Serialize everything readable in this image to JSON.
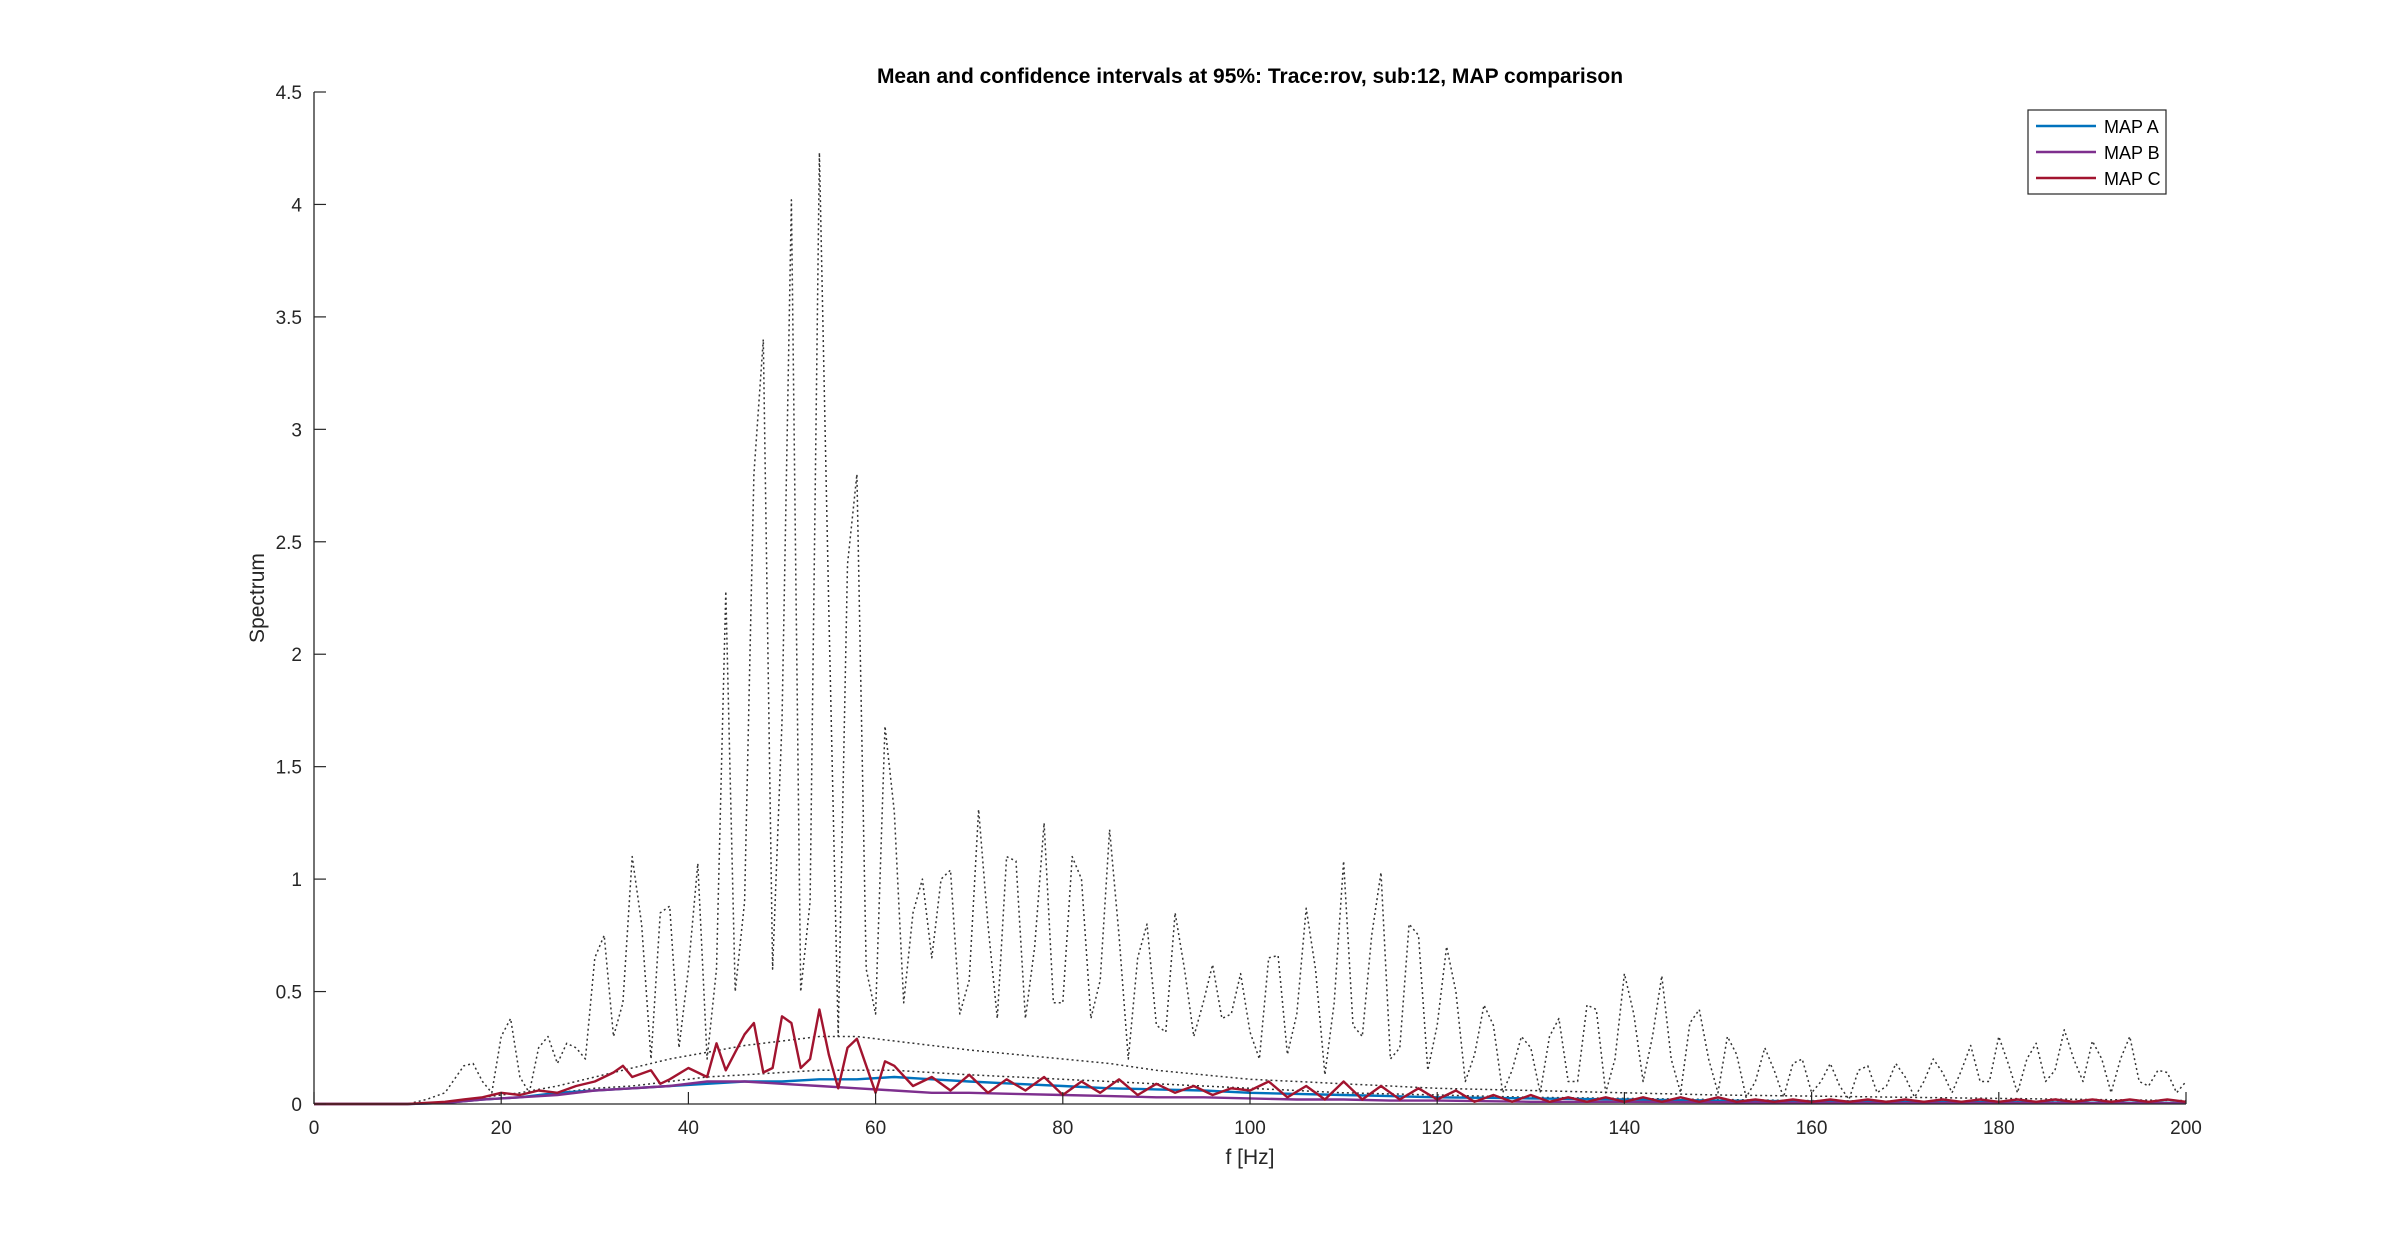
{
  "chart_data": {
    "type": "line",
    "title": "Mean and confidence intervals at 95%: Trace:rov, sub:12, MAP comparison",
    "xlabel": "f [Hz]",
    "ylabel": "Spectrum",
    "xlim": [
      0,
      200
    ],
    "ylim": [
      0,
      4.5
    ],
    "xticks": [
      0,
      20,
      40,
      60,
      80,
      100,
      120,
      140,
      160,
      180,
      200
    ],
    "yticks": [
      0,
      0.5,
      1,
      1.5,
      2,
      2.5,
      3,
      3.5,
      4,
      4.5
    ],
    "xtick_labels": [
      "0",
      "20",
      "40",
      "60",
      "80",
      "100",
      "120",
      "140",
      "160",
      "180",
      "200"
    ],
    "ytick_labels": [
      "0",
      "0.5",
      "1",
      "1.5",
      "2",
      "2.5",
      "3",
      "3.5",
      "4",
      "4.5"
    ],
    "grid": false,
    "legend_position": "top-right",
    "series": [
      {
        "name": "MAP A",
        "color": "#0072BD",
        "style": "solid",
        "x": [
          0,
          10,
          14,
          18,
          22,
          26,
          30,
          34,
          38,
          42,
          46,
          50,
          54,
          58,
          62,
          66,
          70,
          75,
          80,
          85,
          90,
          95,
          100,
          105,
          110,
          115,
          120,
          130,
          140,
          150,
          160,
          170,
          180,
          190,
          200
        ],
        "values": [
          0,
          0.0,
          0.005,
          0.02,
          0.03,
          0.05,
          0.06,
          0.07,
          0.08,
          0.09,
          0.1,
          0.1,
          0.11,
          0.11,
          0.12,
          0.11,
          0.1,
          0.09,
          0.08,
          0.07,
          0.065,
          0.06,
          0.05,
          0.045,
          0.04,
          0.035,
          0.03,
          0.025,
          0.02,
          0.015,
          0.012,
          0.01,
          0.008,
          0.006,
          0.005
        ]
      },
      {
        "name": "MAP B",
        "color": "#7E2F8E",
        "style": "solid",
        "x": [
          0,
          10,
          14,
          18,
          22,
          26,
          30,
          34,
          38,
          42,
          46,
          50,
          54,
          58,
          62,
          66,
          70,
          75,
          80,
          85,
          90,
          95,
          100,
          105,
          110,
          115,
          120,
          130,
          140,
          150,
          160,
          170,
          180,
          190,
          200
        ],
        "values": [
          0,
          0.0,
          0.005,
          0.02,
          0.03,
          0.04,
          0.06,
          0.07,
          0.08,
          0.1,
          0.1,
          0.09,
          0.08,
          0.07,
          0.06,
          0.05,
          0.05,
          0.045,
          0.04,
          0.035,
          0.03,
          0.03,
          0.025,
          0.02,
          0.02,
          0.015,
          0.015,
          0.01,
          0.01,
          0.008,
          0.006,
          0.005,
          0.005,
          0.004,
          0.003
        ]
      },
      {
        "name": "MAP C",
        "color": "#A2142F",
        "style": "solid",
        "x": [
          0,
          10,
          14,
          16,
          18,
          20,
          22,
          24,
          26,
          28,
          30,
          32,
          33,
          34,
          36,
          37,
          38,
          40,
          42,
          43,
          44,
          46,
          47,
          48,
          49,
          50,
          51,
          52,
          53,
          54,
          55,
          56,
          57,
          58,
          60,
          61,
          62,
          64,
          66,
          68,
          70,
          72,
          74,
          76,
          78,
          80,
          82,
          84,
          86,
          88,
          90,
          92,
          94,
          96,
          98,
          100,
          102,
          104,
          106,
          108,
          110,
          112,
          114,
          116,
          118,
          120,
          122,
          124,
          126,
          128,
          130,
          132,
          134,
          136,
          138,
          140,
          142,
          144,
          146,
          148,
          150,
          152,
          154,
          156,
          158,
          160,
          162,
          164,
          166,
          168,
          170,
          172,
          174,
          176,
          178,
          180,
          182,
          184,
          186,
          188,
          190,
          192,
          194,
          196,
          198,
          200
        ],
        "values": [
          0,
          0.0,
          0.01,
          0.02,
          0.03,
          0.05,
          0.04,
          0.06,
          0.05,
          0.08,
          0.1,
          0.14,
          0.17,
          0.12,
          0.15,
          0.09,
          0.11,
          0.16,
          0.12,
          0.27,
          0.15,
          0.31,
          0.36,
          0.14,
          0.16,
          0.39,
          0.36,
          0.16,
          0.2,
          0.42,
          0.22,
          0.07,
          0.25,
          0.29,
          0.05,
          0.19,
          0.17,
          0.08,
          0.12,
          0.06,
          0.13,
          0.05,
          0.11,
          0.06,
          0.12,
          0.04,
          0.1,
          0.05,
          0.11,
          0.04,
          0.09,
          0.05,
          0.08,
          0.04,
          0.07,
          0.06,
          0.1,
          0.03,
          0.08,
          0.02,
          0.1,
          0.02,
          0.08,
          0.02,
          0.07,
          0.02,
          0.06,
          0.01,
          0.04,
          0.01,
          0.04,
          0.01,
          0.03,
          0.01,
          0.03,
          0.01,
          0.03,
          0.01,
          0.03,
          0.01,
          0.03,
          0.01,
          0.02,
          0.01,
          0.02,
          0.01,
          0.02,
          0.01,
          0.02,
          0.01,
          0.02,
          0.01,
          0.02,
          0.01,
          0.02,
          0.01,
          0.02,
          0.01,
          0.02,
          0.01,
          0.02,
          0.01,
          0.02,
          0.01,
          0.02,
          0.01
        ]
      },
      {
        "color": "#333333",
        "style": "dotted",
        "x": [
          0,
          10,
          12,
          14,
          16,
          17,
          18,
          19,
          20,
          21,
          22,
          23,
          24,
          25,
          26,
          27,
          28,
          29,
          30,
          31,
          32,
          33,
          34,
          35,
          36,
          37,
          38,
          39,
          40,
          41,
          42,
          43,
          44,
          45,
          46,
          47,
          48,
          49,
          50,
          51,
          52,
          53,
          54,
          55,
          56,
          57,
          58,
          59,
          60,
          61,
          62,
          63,
          64,
          65,
          66,
          67,
          68,
          69,
          70,
          71,
          72,
          73,
          74,
          75,
          76,
          77,
          78,
          79,
          80,
          81,
          82,
          83,
          84,
          85,
          86,
          87,
          88,
          89,
          90,
          91,
          92,
          93,
          94,
          95,
          96,
          97,
          98,
          99,
          100,
          101,
          102,
          103,
          104,
          105,
          106,
          107,
          108,
          109,
          110,
          111,
          112,
          113,
          114,
          115,
          116,
          117,
          118,
          119,
          120,
          121,
          122,
          123,
          124,
          125,
          126,
          127,
          128,
          129,
          130,
          131,
          132,
          133,
          134,
          135,
          136,
          137,
          138,
          139,
          140,
          141,
          142,
          143,
          144,
          145,
          146,
          147,
          148,
          149,
          150,
          151,
          152,
          153,
          154,
          155,
          156,
          157,
          158,
          159,
          160,
          161,
          162,
          163,
          164,
          165,
          166,
          167,
          168,
          169,
          170,
          171,
          172,
          173,
          174,
          175,
          176,
          177,
          178,
          179,
          180,
          181,
          182,
          183,
          184,
          185,
          186,
          187,
          188,
          189,
          190,
          191,
          192,
          193,
          194,
          195,
          196,
          197,
          198,
          199,
          200
        ],
        "values": [
          0,
          0.0,
          0.02,
          0.05,
          0.17,
          0.18,
          0.1,
          0.05,
          0.3,
          0.38,
          0.12,
          0.05,
          0.25,
          0.3,
          0.18,
          0.27,
          0.25,
          0.2,
          0.65,
          0.75,
          0.3,
          0.45,
          1.1,
          0.8,
          0.2,
          0.85,
          0.88,
          0.25,
          0.6,
          1.07,
          0.2,
          0.6,
          2.28,
          0.5,
          0.9,
          2.8,
          3.4,
          0.6,
          1.7,
          4.02,
          0.5,
          0.9,
          4.23,
          2.2,
          0.3,
          2.4,
          2.8,
          0.6,
          0.4,
          1.68,
          1.3,
          0.45,
          0.85,
          1.0,
          0.65,
          1.0,
          1.04,
          0.4,
          0.55,
          1.31,
          0.8,
          0.38,
          1.1,
          1.08,
          0.38,
          0.7,
          1.25,
          0.45,
          0.45,
          1.1,
          1.0,
          0.38,
          0.55,
          1.22,
          0.75,
          0.2,
          0.65,
          0.8,
          0.35,
          0.32,
          0.85,
          0.6,
          0.3,
          0.45,
          0.62,
          0.38,
          0.4,
          0.58,
          0.32,
          0.2,
          0.65,
          0.66,
          0.22,
          0.4,
          0.87,
          0.6,
          0.13,
          0.45,
          1.08,
          0.35,
          0.3,
          0.75,
          1.03,
          0.2,
          0.25,
          0.8,
          0.75,
          0.15,
          0.35,
          0.7,
          0.5,
          0.1,
          0.22,
          0.44,
          0.35,
          0.05,
          0.15,
          0.3,
          0.25,
          0.05,
          0.3,
          0.38,
          0.1,
          0.1,
          0.44,
          0.42,
          0.05,
          0.2,
          0.58,
          0.4,
          0.1,
          0.3,
          0.57,
          0.2,
          0.05,
          0.36,
          0.42,
          0.2,
          0.05,
          0.3,
          0.22,
          0.03,
          0.1,
          0.25,
          0.15,
          0.03,
          0.18,
          0.2,
          0.05,
          0.1,
          0.18,
          0.08,
          0.02,
          0.15,
          0.17,
          0.05,
          0.08,
          0.18,
          0.12,
          0.03,
          0.1,
          0.2,
          0.14,
          0.05,
          0.15,
          0.26,
          0.1,
          0.1,
          0.3,
          0.18,
          0.05,
          0.2,
          0.27,
          0.1,
          0.15,
          0.33,
          0.2,
          0.1,
          0.28,
          0.2,
          0.05,
          0.2,
          0.3,
          0.1,
          0.08,
          0.15,
          0.14,
          0.05,
          0.1
        ]
      },
      {
        "color": "#333333",
        "style": "dotted",
        "x": [
          0,
          10,
          14,
          18,
          22,
          26,
          30,
          34,
          38,
          42,
          46,
          50,
          54,
          58,
          62,
          66,
          70,
          75,
          80,
          85,
          90,
          95,
          100,
          105,
          110,
          115,
          120,
          130,
          140,
          150,
          160,
          170,
          180,
          190,
          200
        ],
        "values": [
          0,
          0.0,
          0.01,
          0.03,
          0.05,
          0.08,
          0.12,
          0.16,
          0.2,
          0.23,
          0.26,
          0.28,
          0.3,
          0.3,
          0.28,
          0.26,
          0.24,
          0.22,
          0.2,
          0.18,
          0.15,
          0.13,
          0.11,
          0.1,
          0.09,
          0.08,
          0.07,
          0.06,
          0.05,
          0.04,
          0.035,
          0.03,
          0.025,
          0.02,
          0.015
        ]
      },
      {
        "color": "#333333",
        "style": "dotted",
        "x": [
          0,
          10,
          14,
          18,
          22,
          26,
          30,
          34,
          38,
          42,
          46,
          50,
          54,
          58,
          62,
          66,
          70,
          75,
          80,
          85,
          90,
          95,
          100,
          105,
          110,
          115,
          120,
          130,
          140,
          150,
          160,
          170,
          180,
          190,
          200
        ],
        "values": [
          0,
          0.0,
          0.005,
          0.02,
          0.03,
          0.05,
          0.07,
          0.08,
          0.1,
          0.12,
          0.13,
          0.14,
          0.15,
          0.15,
          0.15,
          0.14,
          0.13,
          0.12,
          0.11,
          0.1,
          0.09,
          0.08,
          0.07,
          0.06,
          0.05,
          0.045,
          0.04,
          0.03,
          0.025,
          0.02,
          0.015,
          0.012,
          0.01,
          0.008,
          0.006
        ]
      }
    ]
  }
}
